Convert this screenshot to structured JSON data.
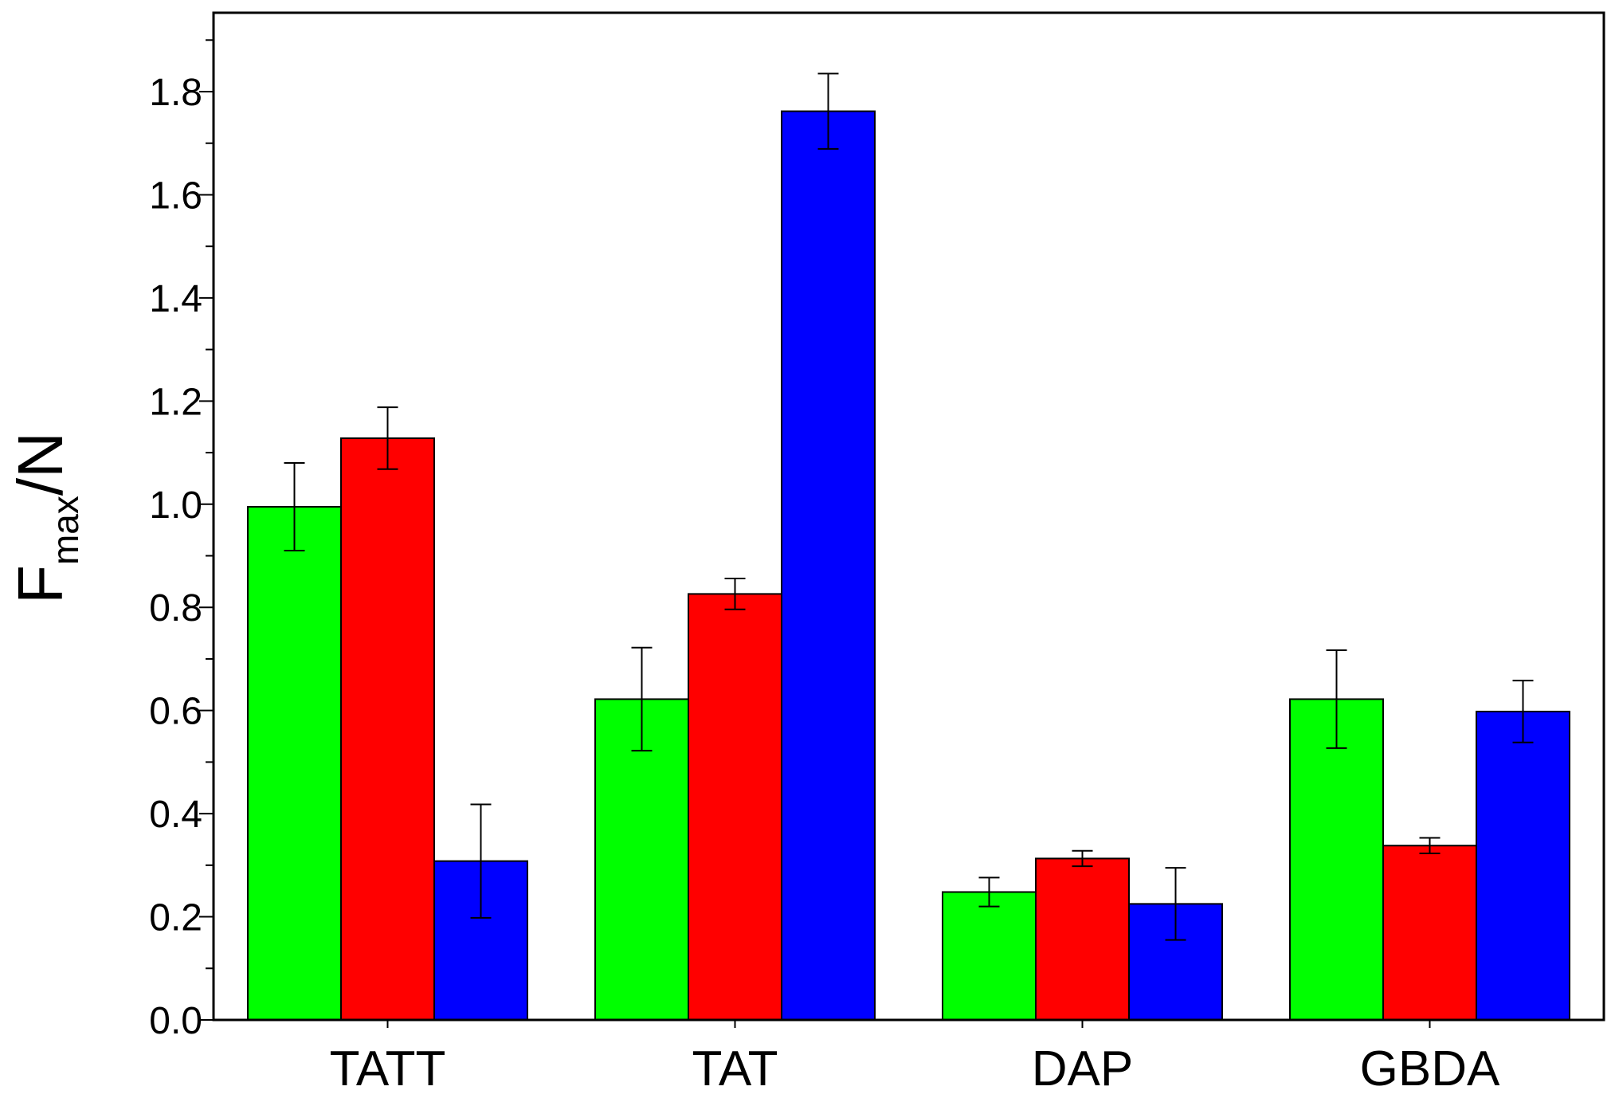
{
  "chart_data": {
    "type": "bar",
    "title": "",
    "xlabel": "",
    "ylabel": {
      "main": "F",
      "subscript": "max",
      "unit": "/N"
    },
    "categories": [
      "TATT",
      "TAT",
      "DAP",
      "GBDA"
    ],
    "series": [
      {
        "name": "",
        "color": "#00ff00",
        "values": [
          0.995,
          0.622,
          0.248,
          0.622
        ],
        "errors": [
          0.085,
          0.1,
          0.028,
          0.095
        ]
      },
      {
        "name": "",
        "color": "#ff0000",
        "values": [
          1.128,
          0.826,
          0.313,
          0.338
        ],
        "errors": [
          0.06,
          0.03,
          0.015,
          0.015
        ]
      },
      {
        "name": "",
        "color": "#0000ff",
        "values": [
          0.308,
          1.762,
          0.225,
          0.598
        ],
        "errors": [
          0.11,
          0.073,
          0.07,
          0.06
        ]
      }
    ],
    "ylim": [
      0.0,
      1.95
    ],
    "yticks": [
      "0.0",
      "0.2",
      "0.4",
      "0.6",
      "0.8",
      "1.0",
      "1.2",
      "1.4",
      "1.6",
      "1.8"
    ],
    "ytick_values": [
      0.0,
      0.2,
      0.4,
      0.6,
      0.8,
      1.0,
      1.2,
      1.4,
      1.6,
      1.8
    ],
    "minor_tick_step": 0.1,
    "grid": false,
    "legend": "none"
  }
}
